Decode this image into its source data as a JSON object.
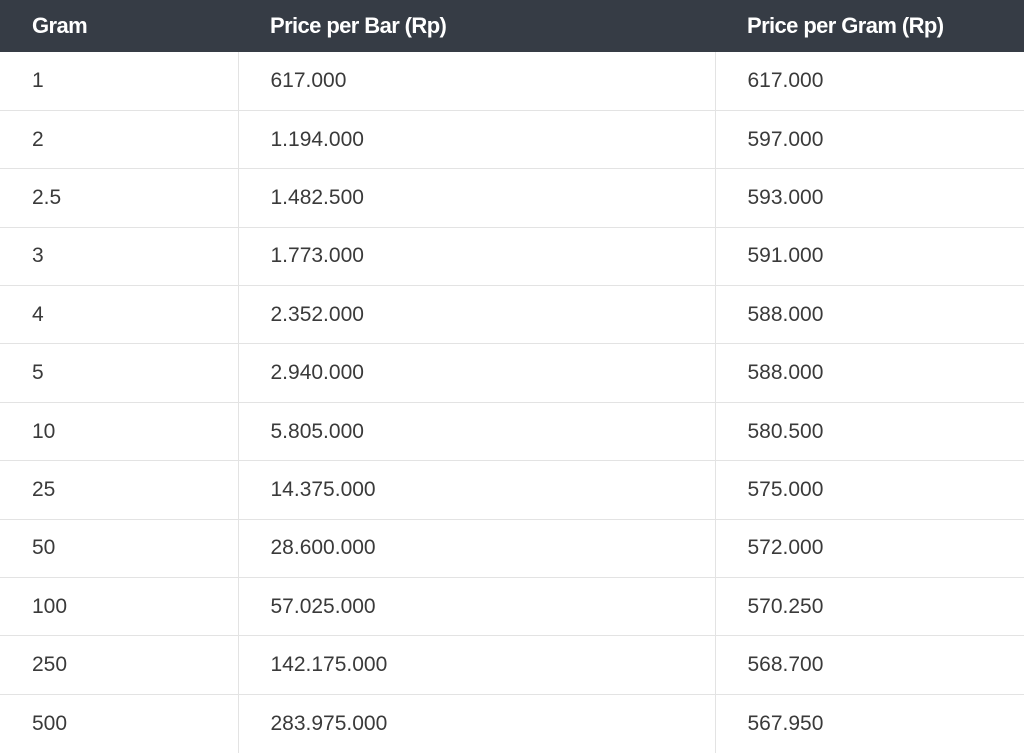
{
  "table": {
    "headers": [
      "Gram",
      "Price per Bar (Rp)",
      "Price per Gram (Rp)"
    ],
    "rows": [
      [
        "1",
        "617.000",
        "617.000"
      ],
      [
        "2",
        "1.194.000",
        "597.000"
      ],
      [
        "2.5",
        "1.482.500",
        "593.000"
      ],
      [
        "3",
        "1.773.000",
        "591.000"
      ],
      [
        "4",
        "2.352.000",
        "588.000"
      ],
      [
        "5",
        "2.940.000",
        "588.000"
      ],
      [
        "10",
        "5.805.000",
        "580.500"
      ],
      [
        "25",
        "14.375.000",
        "575.000"
      ],
      [
        "50",
        "28.600.000",
        "572.000"
      ],
      [
        "100",
        "57.025.000",
        "570.250"
      ],
      [
        "250",
        "142.175.000",
        "568.700"
      ],
      [
        "500",
        "283.975.000",
        "567.950"
      ]
    ]
  }
}
